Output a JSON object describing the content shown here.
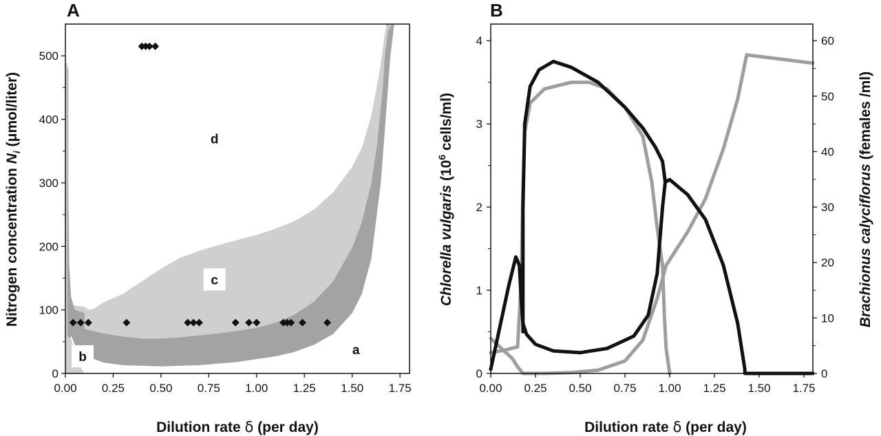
{
  "chart_data": [
    {
      "panel": "A",
      "type": "area",
      "xlabel_prefix": "Dilution rate ",
      "xlabel_symbol": "δ",
      "xlabel_suffix": " (per day)",
      "ylabel_prefix": "Nitrogen concentration ",
      "ylabel_symbol": "N",
      "ylabel_sub": "i",
      "ylabel_suffix": " (μmol/liter)",
      "xlim": [
        0,
        1.8
      ],
      "ylim": [
        0,
        550
      ],
      "xticks": [
        "0.00",
        "0.25",
        "0.50",
        "0.75",
        "1.00",
        "1.25",
        "1.50",
        "1.75"
      ],
      "yticks": [
        "0",
        "100",
        "200",
        "300",
        "400",
        "500"
      ],
      "region_labels": [
        {
          "label": "d",
          "x": 0.78,
          "y": 370,
          "boxed": false
        },
        {
          "label": "c",
          "x": 0.78,
          "y": 148,
          "boxed": true
        },
        {
          "label": "b",
          "x": 0.09,
          "y": 27,
          "boxed": true
        },
        {
          "label": "a",
          "x": 1.52,
          "y": 38,
          "boxed": false
        }
      ],
      "regions": {
        "c_upper": [
          [
            0.1,
            105
          ],
          [
            0.12,
            100
          ],
          [
            0.15,
            102
          ],
          [
            0.2,
            112
          ],
          [
            0.3,
            125
          ],
          [
            0.4,
            145
          ],
          [
            0.5,
            165
          ],
          [
            0.6,
            182
          ],
          [
            0.7,
            193
          ],
          [
            0.8,
            202
          ],
          [
            0.9,
            210
          ],
          [
            1.0,
            218
          ],
          [
            1.1,
            228
          ],
          [
            1.2,
            240
          ],
          [
            1.3,
            258
          ],
          [
            1.4,
            285
          ],
          [
            1.5,
            325
          ],
          [
            1.55,
            355
          ],
          [
            1.6,
            405
          ],
          [
            1.64,
            470
          ],
          [
            1.67,
            530
          ],
          [
            1.69,
            550
          ]
        ],
        "grey_lower": [
          [
            0.03,
            60
          ],
          [
            0.05,
            45
          ],
          [
            0.1,
            28
          ],
          [
            0.2,
            17
          ],
          [
            0.3,
            13
          ],
          [
            0.5,
            11
          ],
          [
            0.7,
            13
          ],
          [
            0.9,
            18
          ],
          [
            1.1,
            27
          ],
          [
            1.2,
            34
          ],
          [
            1.3,
            45
          ],
          [
            1.4,
            62
          ],
          [
            1.5,
            95
          ],
          [
            1.55,
            125
          ],
          [
            1.6,
            180
          ],
          [
            1.65,
            300
          ],
          [
            1.68,
            420
          ],
          [
            1.7,
            500
          ],
          [
            1.72,
            550
          ]
        ],
        "c_lower": [
          [
            0.02,
            108
          ],
          [
            0.05,
            85
          ],
          [
            0.1,
            70
          ],
          [
            0.2,
            63
          ],
          [
            0.3,
            58
          ],
          [
            0.4,
            55
          ],
          [
            0.5,
            55
          ],
          [
            0.6,
            57
          ],
          [
            0.7,
            60
          ],
          [
            0.8,
            63
          ],
          [
            0.9,
            67
          ],
          [
            1.0,
            72
          ],
          [
            1.1,
            80
          ],
          [
            1.2,
            93
          ],
          [
            1.3,
            113
          ],
          [
            1.4,
            145
          ],
          [
            1.5,
            198
          ],
          [
            1.55,
            238
          ],
          [
            1.6,
            300
          ],
          [
            1.63,
            360
          ],
          [
            1.66,
            450
          ],
          [
            1.68,
            550
          ]
        ],
        "left_wall_outer": [
          [
            0.0,
            0
          ],
          [
            0.0,
            550
          ]
        ],
        "left_wall_inner": [
          [
            0.015,
            480
          ],
          [
            0.015,
            300
          ],
          [
            0.02,
            170
          ],
          [
            0.03,
            120
          ],
          [
            0.05,
            100
          ],
          [
            0.1,
            95
          ]
        ],
        "b_upper": [
          [
            0.0,
            60
          ],
          [
            0.03,
            55
          ],
          [
            0.05,
            30
          ],
          [
            0.08,
            10
          ],
          [
            0.1,
            0
          ]
        ]
      },
      "markers_upper": {
        "y": 515,
        "x": [
          0.4,
          0.42,
          0.44,
          0.47
        ]
      },
      "markers_lower": {
        "y": 80,
        "x": [
          0.04,
          0.08,
          0.12,
          0.32,
          0.64,
          0.67,
          0.7,
          0.89,
          0.96,
          1.0,
          1.14,
          1.16,
          1.18,
          1.24,
          1.37
        ]
      },
      "colors": {
        "light": "#cfcfcf",
        "medium": "#a3a3a3",
        "dark_band": "#969696",
        "marker": "#111111"
      }
    },
    {
      "panel": "B",
      "type": "line",
      "xlabel_prefix": "Dilution rate ",
      "xlabel_symbol": "δ",
      "xlabel_suffix": " (per day)",
      "ylabel_left_species": "Chlorella vulgaris",
      "ylabel_left_prefix": " (10",
      "ylabel_left_sup": "6",
      "ylabel_left_suffix": " cells/ml)",
      "ylabel_right_species": "Brachionus calyciflorus",
      "ylabel_right_suffix": " (females /ml)",
      "xlim": [
        0,
        1.8
      ],
      "ylim_left": [
        0,
        4.2
      ],
      "ylim_right": [
        0,
        63
      ],
      "xticks": [
        "0.00",
        "0.25",
        "0.50",
        "0.75",
        "1.00",
        "1.25",
        "1.50",
        "1.75"
      ],
      "yticks_left": [
        "0",
        "1",
        "2",
        "3",
        "4"
      ],
      "yticks_right": [
        "0",
        "10",
        "20",
        "30",
        "40",
        "50",
        "60"
      ],
      "series": [
        {
          "color": "#111111",
          "axis": "left",
          "points": [
            [
              0.0,
              0.05
            ],
            [
              0.05,
              0.55
            ],
            [
              0.1,
              1.05
            ],
            [
              0.14,
              1.4
            ],
            [
              0.16,
              1.3
            ],
            [
              0.17,
              0.9
            ],
            [
              0.18,
              0.6
            ],
            [
              0.2,
              0.47
            ],
            [
              0.25,
              0.35
            ],
            [
              0.35,
              0.27
            ],
            [
              0.5,
              0.25
            ],
            [
              0.65,
              0.3
            ],
            [
              0.8,
              0.45
            ],
            [
              0.88,
              0.7
            ],
            [
              0.93,
              1.2
            ],
            [
              0.96,
              2.0
            ],
            [
              0.975,
              2.3
            ],
            [
              1.0,
              2.33
            ],
            [
              1.1,
              2.15
            ],
            [
              1.2,
              1.85
            ],
            [
              1.3,
              1.3
            ],
            [
              1.38,
              0.6
            ],
            [
              1.42,
              0.05
            ],
            [
              1.42,
              0.0
            ],
            [
              1.8,
              0.0
            ]
          ]
        },
        {
          "color": "#111111",
          "axis": "left",
          "points": [
            [
              0.18,
              0.5
            ],
            [
              0.18,
              2.0
            ],
            [
              0.19,
              3.0
            ],
            [
              0.22,
              3.45
            ],
            [
              0.27,
              3.65
            ],
            [
              0.35,
              3.75
            ],
            [
              0.45,
              3.68
            ],
            [
              0.6,
              3.5
            ],
            [
              0.75,
              3.2
            ],
            [
              0.85,
              2.95
            ],
            [
              0.92,
              2.72
            ],
            [
              0.96,
              2.55
            ],
            [
              0.975,
              2.3
            ]
          ]
        },
        {
          "color": "#9e9e9e",
          "axis": "left",
          "points": [
            [
              0.0,
              0.25
            ],
            [
              0.08,
              0.28
            ],
            [
              0.15,
              0.32
            ],
            [
              0.17,
              1.1
            ],
            [
              0.18,
              2.2
            ],
            [
              0.19,
              2.9
            ],
            [
              0.22,
              3.25
            ],
            [
              0.3,
              3.42
            ],
            [
              0.45,
              3.5
            ],
            [
              0.55,
              3.5
            ],
            [
              0.65,
              3.42
            ],
            [
              0.75,
              3.2
            ],
            [
              0.85,
              2.85
            ],
            [
              0.9,
              2.3
            ],
            [
              0.93,
              1.75
            ],
            [
              0.96,
              1.3
            ],
            [
              0.97,
              0.7
            ],
            [
              0.98,
              0.3
            ],
            [
              1.0,
              0.0
            ]
          ]
        },
        {
          "color": "#9e9e9e",
          "axis": "left",
          "points": [
            [
              0.0,
              0.42
            ],
            [
              0.12,
              0.18
            ],
            [
              0.15,
              0.08
            ],
            [
              0.18,
              0.0
            ],
            [
              0.3,
              0.0
            ],
            [
              0.45,
              0.01
            ],
            [
              0.6,
              0.04
            ],
            [
              0.75,
              0.15
            ],
            [
              0.85,
              0.4
            ],
            [
              0.93,
              0.9
            ],
            [
              0.98,
              1.3
            ],
            [
              1.1,
              1.7
            ],
            [
              1.2,
              2.1
            ],
            [
              1.3,
              2.7
            ],
            [
              1.38,
              3.3
            ],
            [
              1.43,
              3.83
            ],
            [
              1.8,
              3.73
            ]
          ]
        }
      ]
    }
  ]
}
